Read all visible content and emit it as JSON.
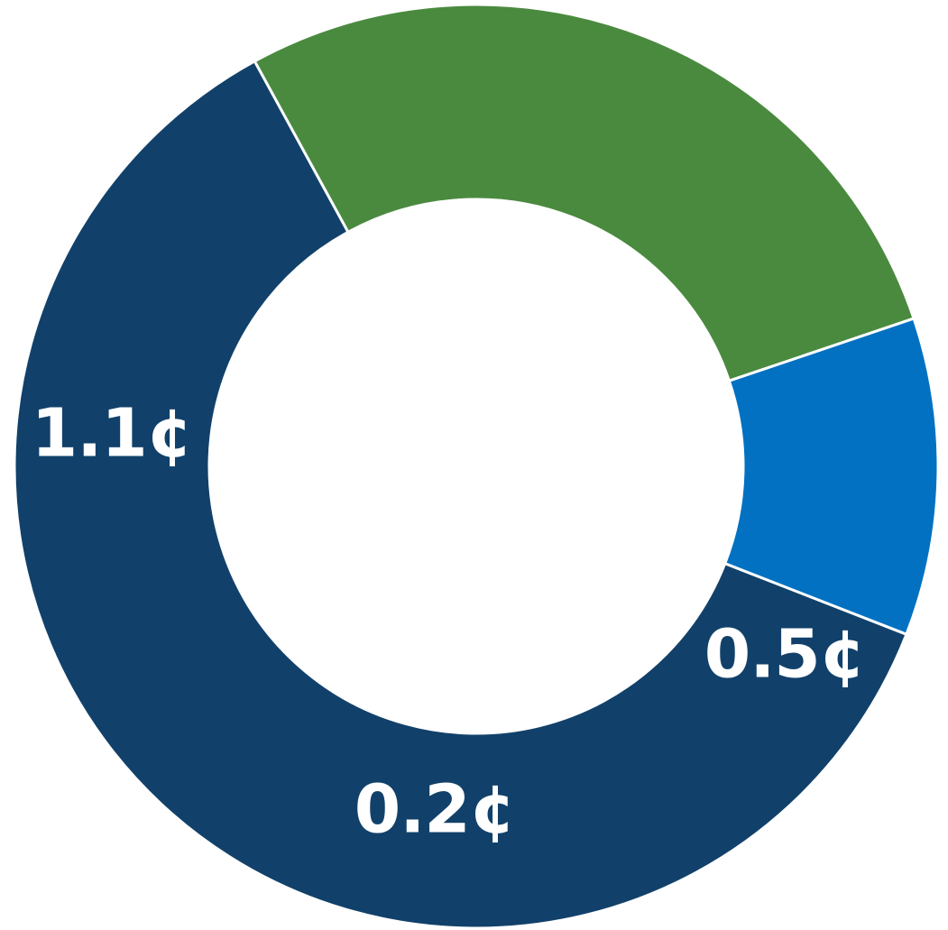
{
  "chart_data": {
    "type": "pie",
    "donut": true,
    "title": "",
    "legend": "none",
    "slices": [
      {
        "label": "1.1¢",
        "value": 1.1,
        "color": "#11416a"
      },
      {
        "label": "0.5¢",
        "value": 0.5,
        "color": "#4a8a3f"
      },
      {
        "label": "0.2¢",
        "value": 0.2,
        "color": "#0271c1"
      }
    ]
  }
}
